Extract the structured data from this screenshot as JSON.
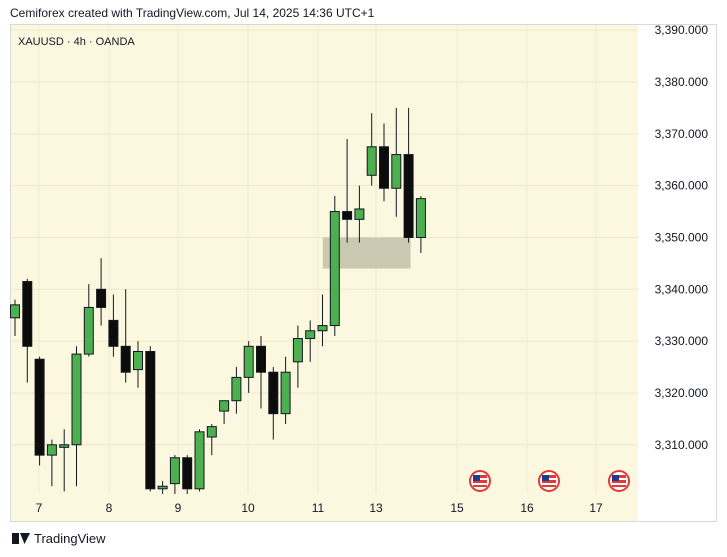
{
  "header": {
    "text": "Cemiforex created with TradingView.com, Jul 14, 2025 14:36 UTC+1"
  },
  "footer": {
    "brand": "TradingView",
    "logo_icon": "tradingview-logo-icon"
  },
  "chart_data": {
    "type": "candlestick",
    "symbol_label": "XAUUSD · 4h · OANDA",
    "ylim": [
      3300.5,
      3391
    ],
    "y_ticks": [
      "3,310.000",
      "3,320.000",
      "3,330.000",
      "3,340.000",
      "3,350.000",
      "3,360.000",
      "3,370.000",
      "3,380.000",
      "3,390.000"
    ],
    "x_ticks": [
      "7",
      "8",
      "9",
      "10",
      "11",
      "13",
      "15",
      "16",
      "17"
    ],
    "grid": true,
    "colors": {
      "up": "#4caf50",
      "down": "#0c0c0c",
      "background": "#fbf8df",
      "zone": "#c5c2ad",
      "text": "#131722"
    },
    "candles": [
      {
        "o": 3334.5,
        "h": 3338.0,
        "l": 3331.0,
        "c": 3337.0
      },
      {
        "o": 3341.5,
        "h": 3342.0,
        "l": 3322.0,
        "c": 3329.0
      },
      {
        "o": 3326.5,
        "h": 3327.0,
        "l": 3306.0,
        "c": 3308.0
      },
      {
        "o": 3308.0,
        "h": 3311.0,
        "l": 3302.0,
        "c": 3310.0
      },
      {
        "o": 3309.5,
        "h": 3313.0,
        "l": 3301.0,
        "c": 3310.0
      },
      {
        "o": 3310.0,
        "h": 3329.0,
        "l": 3302.0,
        "c": 3327.5
      },
      {
        "o": 3327.5,
        "h": 3341.0,
        "l": 3327.0,
        "c": 3336.5
      },
      {
        "o": 3340.0,
        "h": 3346.0,
        "l": 3333.0,
        "c": 3336.5
      },
      {
        "o": 3334.0,
        "h": 3339.0,
        "l": 3327.0,
        "c": 3329.0
      },
      {
        "o": 3329.0,
        "h": 3340.0,
        "l": 3322.0,
        "c": 3324.0
      },
      {
        "o": 3324.5,
        "h": 3330.0,
        "l": 3321.0,
        "c": 3328.0
      },
      {
        "o": 3328.0,
        "h": 3329.0,
        "l": 3301.0,
        "c": 3301.5
      },
      {
        "o": 3301.5,
        "h": 3303.0,
        "l": 3300.5,
        "c": 3302.0
      },
      {
        "o": 3302.5,
        "h": 3308.0,
        "l": 3300.5,
        "c": 3307.5
      },
      {
        "o": 3307.5,
        "h": 3308.0,
        "l": 3300.5,
        "c": 3301.5
      },
      {
        "o": 3301.5,
        "h": 3313.0,
        "l": 3301.0,
        "c": 3312.5
      },
      {
        "o": 3311.5,
        "h": 3314.0,
        "l": 3308.0,
        "c": 3313.5
      },
      {
        "o": 3316.5,
        "h": 3318.0,
        "l": 3314.0,
        "c": 3318.5
      },
      {
        "o": 3318.5,
        "h": 3325.0,
        "l": 3316.0,
        "c": 3323.0
      },
      {
        "o": 3323.0,
        "h": 3330.0,
        "l": 3320.0,
        "c": 3329.0
      },
      {
        "o": 3329.0,
        "h": 3331.0,
        "l": 3317.0,
        "c": 3324.0
      },
      {
        "o": 3324.0,
        "h": 3325.0,
        "l": 3311.0,
        "c": 3316.0
      },
      {
        "o": 3316.0,
        "h": 3327.0,
        "l": 3314.0,
        "c": 3324.0
      },
      {
        "o": 3326.0,
        "h": 3333.0,
        "l": 3321.0,
        "c": 3330.5
      },
      {
        "o": 3330.5,
        "h": 3334.0,
        "l": 3326.0,
        "c": 3332.0
      },
      {
        "o": 3332.0,
        "h": 3339.0,
        "l": 3329.0,
        "c": 3333.0
      },
      {
        "o": 3333.0,
        "h": 3358.0,
        "l": 3331.0,
        "c": 3355.0
      },
      {
        "o": 3355.0,
        "h": 3369.0,
        "l": 3349.0,
        "c": 3353.5
      },
      {
        "o": 3353.5,
        "h": 3360.0,
        "l": 3349.0,
        "c": 3355.5
      },
      {
        "o": 3362.0,
        "h": 3374.0,
        "l": 3360.0,
        "c": 3367.5
      },
      {
        "o": 3367.5,
        "h": 3372.0,
        "l": 3357.0,
        "c": 3359.5
      },
      {
        "o": 3359.5,
        "h": 3375.0,
        "l": 3354.0,
        "c": 3366.0
      },
      {
        "o": 3366.0,
        "h": 3375.0,
        "l": 3349.0,
        "c": 3350.0
      },
      {
        "o": 3350.0,
        "h": 3358.0,
        "l": 3347.0,
        "c": 3357.5
      }
    ],
    "zone": {
      "from_candle": 26,
      "to_candle": 32,
      "top": 3350.0,
      "bottom": 3344.0
    },
    "event_markers": [
      "15",
      "16",
      "17"
    ],
    "event_icon": "us-flag-icon"
  }
}
